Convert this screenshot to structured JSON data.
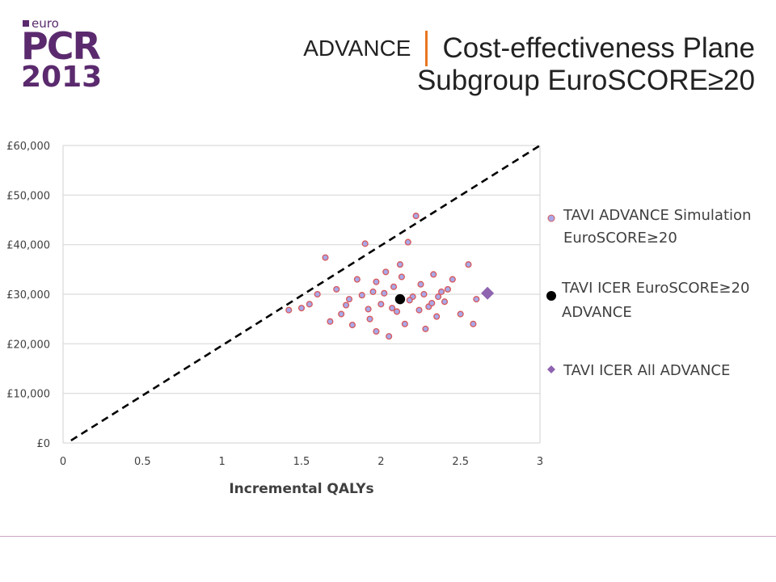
{
  "logo": {
    "small": "euro",
    "brand": "PCR",
    "year": "2013"
  },
  "header": {
    "left": "ADVANCE",
    "title": "Cost-effectiveness Plane",
    "subtitle": "Subgroup EuroSCORE≥20"
  },
  "colors": {
    "simulation_fill": "#a8a8e8",
    "simulation_stroke": "#d8585a",
    "icer_subgroup": "#000000",
    "icer_all": "#8e63b0",
    "threshold_line": "#000000",
    "accent": "#e87722"
  },
  "chart_data": {
    "type": "scatter",
    "xlabel": "Incremental QALYs",
    "ylabel": "",
    "xlim": [
      0,
      3
    ],
    "ylim": [
      0,
      60000
    ],
    "x_ticks": [
      "0",
      "0.5",
      "1",
      "1.5",
      "2",
      "2.5",
      "3"
    ],
    "y_ticks": [
      "£0",
      "£10,000",
      "£20,000",
      "£30,000",
      "£40,000",
      "£50,000",
      "£60,000"
    ],
    "grid": "horizontal",
    "legend_position": "right",
    "threshold_line": {
      "x": [
        0.05,
        3
      ],
      "y": [
        500,
        60000
      ],
      "style": "dashed"
    },
    "series": [
      {
        "name": "TAVI ADVANCE Simulation EuroSCORE≥20",
        "marker": "circle",
        "points": [
          [
            1.42,
            26800
          ],
          [
            1.5,
            27200
          ],
          [
            1.55,
            28000
          ],
          [
            1.6,
            30000
          ],
          [
            1.65,
            37400
          ],
          [
            1.68,
            24500
          ],
          [
            1.72,
            31000
          ],
          [
            1.75,
            26000
          ],
          [
            1.8,
            29000
          ],
          [
            1.82,
            23800
          ],
          [
            1.85,
            33000
          ],
          [
            1.9,
            40200
          ],
          [
            1.93,
            25000
          ],
          [
            1.95,
            30500
          ],
          [
            1.97,
            22500
          ],
          [
            2.0,
            28000
          ],
          [
            2.03,
            34500
          ],
          [
            2.05,
            21500
          ],
          [
            2.08,
            31500
          ],
          [
            2.1,
            26500
          ],
          [
            2.12,
            36000
          ],
          [
            2.15,
            24000
          ],
          [
            2.17,
            40500
          ],
          [
            2.2,
            29500
          ],
          [
            2.22,
            45800
          ],
          [
            2.25,
            32000
          ],
          [
            2.28,
            23000
          ],
          [
            2.3,
            27500
          ],
          [
            2.33,
            34000
          ],
          [
            2.35,
            25500
          ],
          [
            2.38,
            30500
          ],
          [
            2.4,
            28500
          ],
          [
            2.45,
            33000
          ],
          [
            2.5,
            26000
          ],
          [
            2.55,
            36000
          ],
          [
            2.58,
            24000
          ],
          [
            2.6,
            29000
          ],
          [
            1.78,
            27800
          ],
          [
            1.88,
            29800
          ],
          [
            2.02,
            30200
          ],
          [
            2.07,
            27200
          ],
          [
            2.18,
            28800
          ],
          [
            2.27,
            30000
          ],
          [
            2.32,
            28200
          ],
          [
            2.42,
            31000
          ],
          [
            1.97,
            32500
          ],
          [
            2.13,
            33500
          ],
          [
            2.24,
            26800
          ],
          [
            1.92,
            27000
          ],
          [
            2.36,
            29500
          ]
        ]
      },
      {
        "name": "TAVI ICER EuroSCORE≥20 ADVANCE",
        "marker": "circle",
        "points": [
          [
            2.12,
            29000
          ]
        ]
      },
      {
        "name": "TAVI ICER All ADVANCE",
        "marker": "diamond",
        "points": [
          [
            2.67,
            30200
          ]
        ]
      }
    ]
  },
  "legend": [
    {
      "lines": [
        "TAVI ADVANCE Simulation",
        "EuroSCORE≥20"
      ]
    },
    {
      "lines": [
        "TAVI ICER EuroSCORE≥20",
        "ADVANCE"
      ]
    },
    {
      "lines": [
        "TAVI ICER All ADVANCE"
      ]
    }
  ]
}
